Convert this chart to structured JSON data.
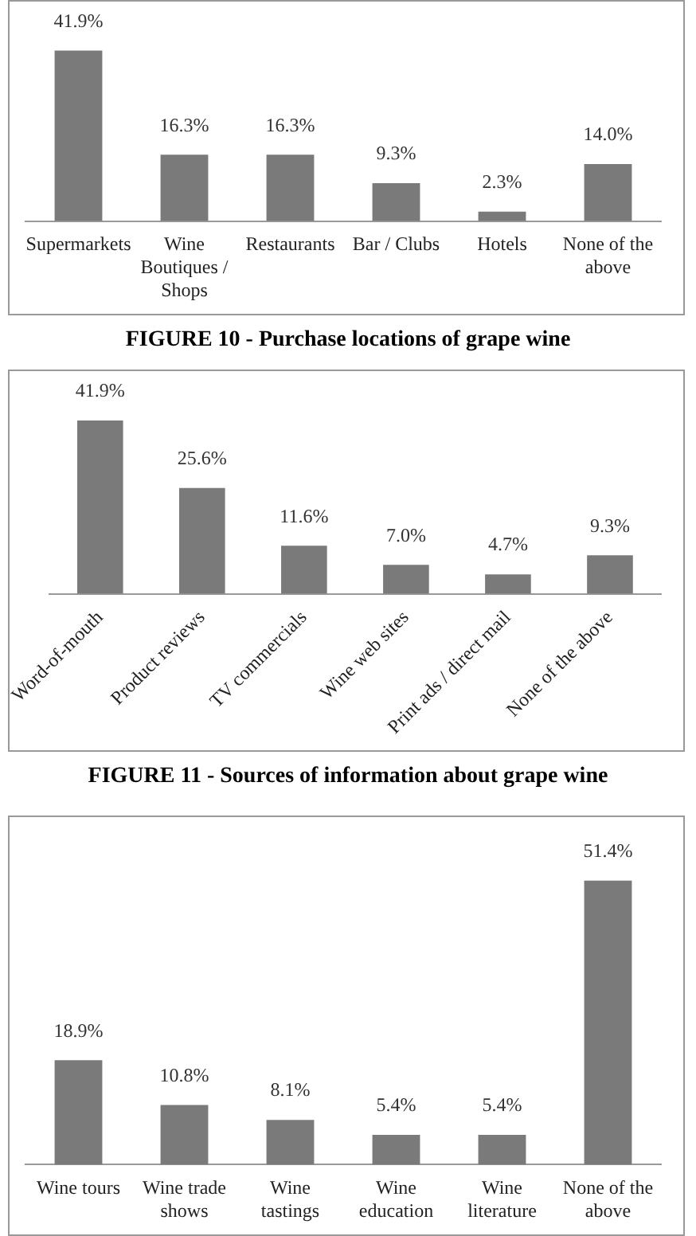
{
  "chart_data": [
    {
      "type": "bar",
      "title": "FIGURE 10 - Purchase locations of grape wine",
      "categories": [
        "Supermarkets",
        "Wine Boutiques / Shops",
        "Restaurants",
        "Bar / Clubs",
        "Hotels",
        "None of the above"
      ],
      "values": [
        41.9,
        16.3,
        16.3,
        9.3,
        2.3,
        14.0
      ],
      "value_labels": [
        "41.9%",
        "16.3%",
        "16.3%",
        "9.3%",
        "2.3%",
        "14.0%"
      ],
      "color": "#7a7a7a",
      "grid": false,
      "legend": false,
      "tick_labels": "x"
    },
    {
      "type": "bar",
      "title": "FIGURE 11 - Sources of information about grape wine",
      "categories": [
        "Word-of-mouth",
        "Product reviews",
        "TV commercials",
        "Wine web sites",
        "Print ads / direct mail",
        "None of the above"
      ],
      "values": [
        41.9,
        25.6,
        11.6,
        7.0,
        4.7,
        9.3
      ],
      "value_labels": [
        "41.9%",
        "25.6%",
        "11.6%",
        "7.0%",
        "4.7%",
        "9.3%"
      ],
      "color": "#7a7a7a",
      "grid": false,
      "legend": false,
      "tick_labels": "x"
    },
    {
      "type": "bar",
      "categories": [
        "Wine tours",
        "Wine trade shows",
        "Wine tastings",
        "Wine education",
        "Wine literature",
        "None of the above"
      ],
      "values": [
        18.9,
        10.8,
        8.1,
        5.4,
        5.4,
        51.4
      ],
      "value_labels": [
        "18.9%",
        "10.8%",
        "8.1%",
        "5.4%",
        "5.4%",
        "51.4%"
      ],
      "color": "#7a7a7a",
      "grid": false,
      "legend": false,
      "tick_labels": "x"
    }
  ]
}
